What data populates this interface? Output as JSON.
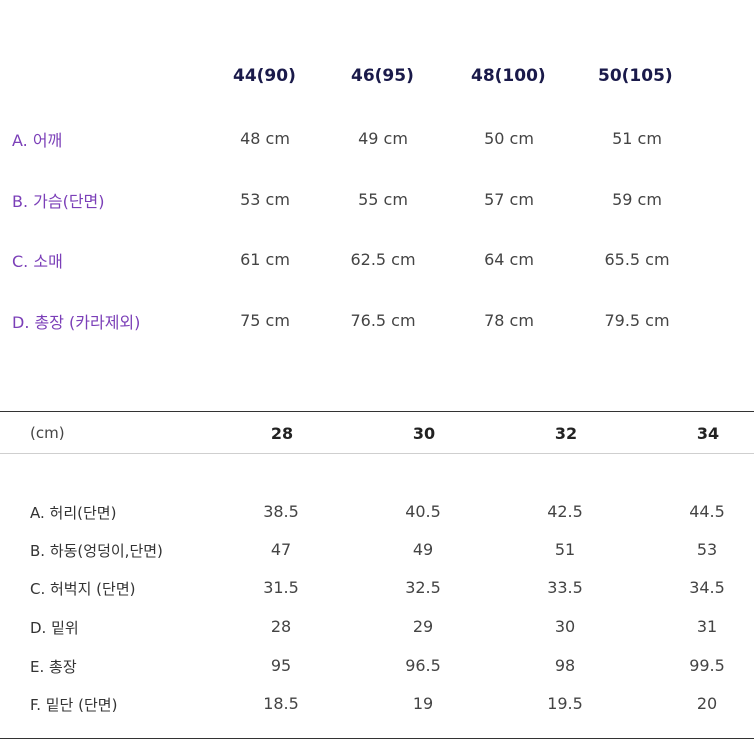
{
  "jacket": {
    "sizes": [
      "44(90)",
      "46(95)",
      "48(100)",
      "50(105)"
    ],
    "rows": [
      {
        "label": "A. 어깨",
        "values": [
          "48 cm",
          "49 cm",
          "50 cm",
          "51 cm"
        ]
      },
      {
        "label": "B. 가슴(단면)",
        "values": [
          "53 cm",
          "55 cm",
          "57 cm",
          "59 cm"
        ]
      },
      {
        "label": "C. 소매",
        "values": [
          "61 cm",
          "62.5 cm",
          "64 cm",
          "65.5 cm"
        ]
      },
      {
        "label": "D. 총장 (카라제외)",
        "values": [
          "75 cm",
          "76.5 cm",
          "78 cm",
          "79.5 cm"
        ]
      }
    ]
  },
  "pants": {
    "unit": "(cm)",
    "sizes": [
      "28",
      "30",
      "32",
      "34"
    ],
    "rows": [
      {
        "label": "A. 허리(단면)",
        "values": [
          "38.5",
          "40.5",
          "42.5",
          "44.5"
        ]
      },
      {
        "label": "B. 하동(엉덩이,단면)",
        "values": [
          "47",
          "49",
          "51",
          "53"
        ]
      },
      {
        "label": "C. 허벅지 (단면)",
        "values": [
          "31.5",
          "32.5",
          "33.5",
          "34.5"
        ]
      },
      {
        "label": "D. 밑위",
        "values": [
          "28",
          "29",
          "30",
          "31"
        ]
      },
      {
        "label": "E. 총장",
        "values": [
          "95",
          "96.5",
          "98",
          "99.5"
        ]
      },
      {
        "label": "F. 밑단 (단면)",
        "values": [
          "18.5",
          "19",
          "19.5",
          "20"
        ]
      }
    ]
  },
  "colors": {
    "label_purple": "#7b3fb8",
    "header_navy": "#1a1a4a"
  }
}
